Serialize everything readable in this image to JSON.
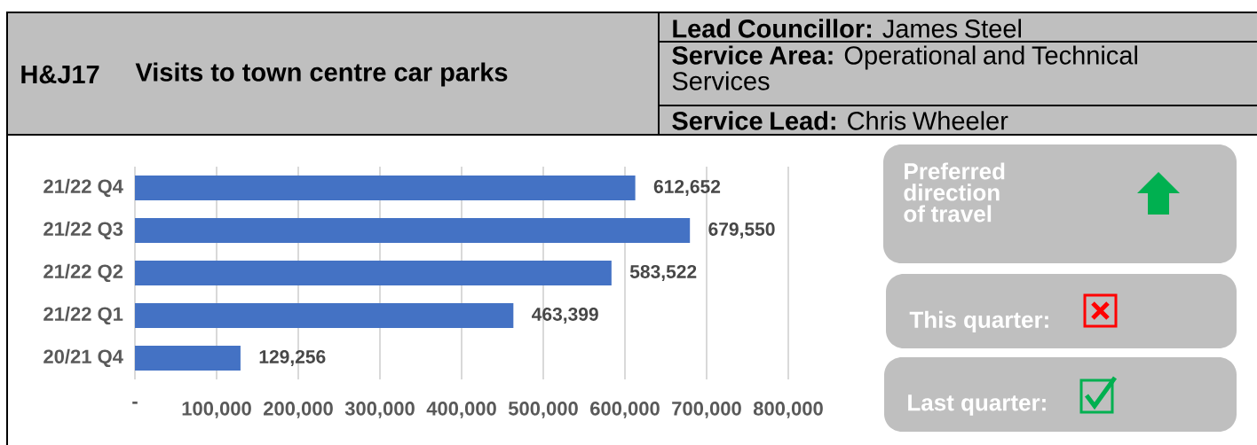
{
  "chart_data": {
    "type": "bar",
    "orientation": "horizontal",
    "subtitle": "H&J17",
    "title": "Visits to town centre car parks",
    "categories": [
      "21/22 Q4",
      "21/22 Q3",
      "21/22 Q2",
      "21/22 Q1",
      "20/21 Q4"
    ],
    "values": [
      612652,
      679550,
      583522,
      463399,
      129256
    ],
    "value_labels": [
      "612,652",
      "679,550",
      "583,522",
      "463,399",
      "129,256"
    ],
    "color": "#4472c4",
    "xlim": [
      0,
      800000
    ],
    "xticks": [
      {
        "value": 0,
        "label": "-"
      },
      {
        "value": 100000,
        "label": "100,000"
      },
      {
        "value": 200000,
        "label": "200,000"
      },
      {
        "value": 300000,
        "label": "300,000"
      },
      {
        "value": 400000,
        "label": "400,000"
      },
      {
        "value": 500000,
        "label": "500,000"
      },
      {
        "value": 600000,
        "label": "600,000"
      },
      {
        "value": 700000,
        "label": "700,000"
      },
      {
        "value": 800000,
        "label": "800,000"
      }
    ],
    "grid": "x",
    "annotations": [
      "**Lead Councillor:** James Steel",
      "**Service Area:** Operational and Technical Services",
      "**Service Lead:** Chris Wheeler",
      "Preferred direction of travel",
      "This quarter:",
      "Last quarter:"
    ]
  }
}
